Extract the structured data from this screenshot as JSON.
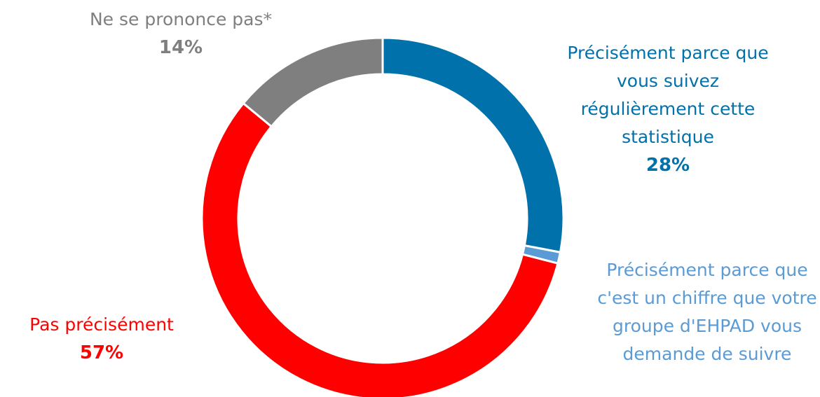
{
  "chart_data": {
    "type": "donut",
    "categories": [
      "Précisément parce que vous suivez régulièrement cette statistique",
      "Précisément parce que c'est un chiffre que votre groupe d'EHPAD vous demande de suivre",
      "Pas précisément",
      "Ne se prononce pas*"
    ],
    "values": [
      28,
      1,
      57,
      14
    ],
    "value_labels": [
      "28%",
      null,
      "57%",
      "14%"
    ],
    "colors": [
      "#0071aa",
      "#5b9bd5",
      "#ff0000",
      "#7f7f7f"
    ]
  }
}
